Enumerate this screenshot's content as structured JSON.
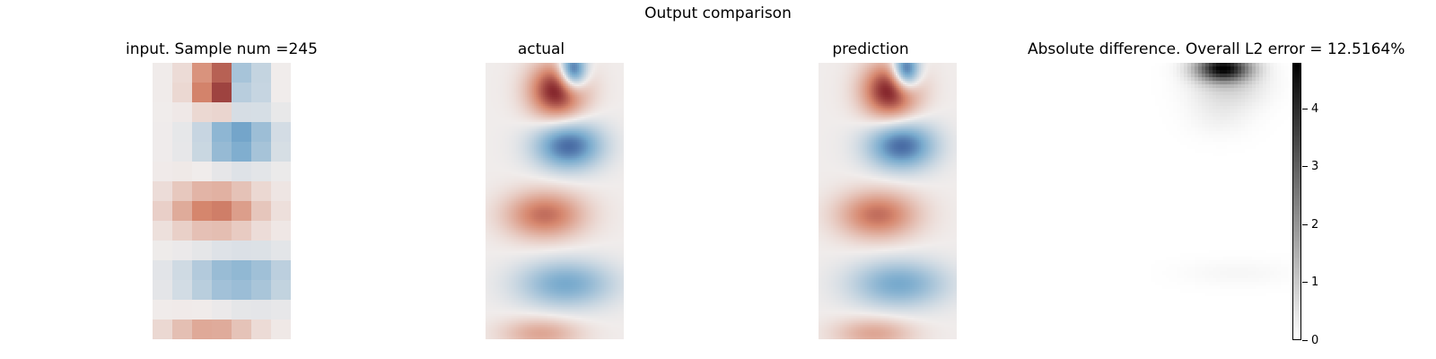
{
  "figure": {
    "suptitle": "Output comparison"
  },
  "chart_data": [
    {
      "type": "heatmap",
      "title": "input. Sample num =245",
      "colormap": "diverging red-white-blue",
      "grid": false,
      "axes": "hidden",
      "blobs": [
        {
          "sign": 1,
          "cx": 0.48,
          "cy": 0.08,
          "sx": 0.13,
          "sy": 0.06,
          "amp": 0.9
        },
        {
          "sign": -1,
          "cx": 0.68,
          "cy": 0.07,
          "sx": 0.07,
          "sy": 0.05,
          "amp": 0.9
        },
        {
          "sign": -1,
          "cx": 0.62,
          "cy": 0.28,
          "sx": 0.18,
          "sy": 0.06,
          "amp": 0.6
        },
        {
          "sign": 1,
          "cx": 0.45,
          "cy": 0.53,
          "sx": 0.23,
          "sy": 0.06,
          "amp": 0.55
        },
        {
          "sign": -1,
          "cx": 0.62,
          "cy": 0.78,
          "sx": 0.28,
          "sy": 0.06,
          "amp": 0.45
        },
        {
          "sign": 1,
          "cx": 0.42,
          "cy": 0.97,
          "sx": 0.22,
          "sy": 0.04,
          "amp": 0.35
        }
      ]
    },
    {
      "type": "heatmap",
      "title": "actual",
      "colormap": "diverging red-white-blue",
      "grid": false,
      "axes": "hidden",
      "blobs": [
        {
          "sign": 1,
          "cx": 0.52,
          "cy": 0.1,
          "sx": 0.14,
          "sy": 0.07,
          "amp": 0.95
        },
        {
          "sign": -1,
          "cx": 0.6,
          "cy": 0.3,
          "sx": 0.17,
          "sy": 0.06,
          "amp": 0.75
        },
        {
          "sign": 1,
          "cx": 0.43,
          "cy": 0.55,
          "sx": 0.2,
          "sy": 0.06,
          "amp": 0.6
        },
        {
          "sign": -1,
          "cx": 0.58,
          "cy": 0.8,
          "sx": 0.24,
          "sy": 0.06,
          "amp": 0.5
        },
        {
          "sign": 1,
          "cx": 0.4,
          "cy": 0.98,
          "sx": 0.2,
          "sy": 0.04,
          "amp": 0.35
        },
        {
          "sign": -1,
          "cx": 0.63,
          "cy": 0.03,
          "sx": 0.07,
          "sy": 0.05,
          "amp": 1.0
        }
      ]
    },
    {
      "type": "heatmap",
      "title": "prediction",
      "colormap": "diverging red-white-blue",
      "grid": false,
      "axes": "hidden",
      "blobs": [
        {
          "sign": 1,
          "cx": 0.52,
          "cy": 0.1,
          "sx": 0.14,
          "sy": 0.07,
          "amp": 0.95
        },
        {
          "sign": -1,
          "cx": 0.6,
          "cy": 0.3,
          "sx": 0.17,
          "sy": 0.06,
          "amp": 0.75
        },
        {
          "sign": 1,
          "cx": 0.43,
          "cy": 0.55,
          "sx": 0.2,
          "sy": 0.06,
          "amp": 0.6
        },
        {
          "sign": -1,
          "cx": 0.58,
          "cy": 0.8,
          "sx": 0.24,
          "sy": 0.06,
          "amp": 0.5
        },
        {
          "sign": 1,
          "cx": 0.4,
          "cy": 0.98,
          "sx": 0.2,
          "sy": 0.04,
          "amp": 0.35
        },
        {
          "sign": -1,
          "cx": 0.63,
          "cy": 0.03,
          "sx": 0.07,
          "sy": 0.05,
          "amp": 1.0
        }
      ]
    },
    {
      "type": "heatmap",
      "title": "Absolute difference. Overall L2 error = 12.5164%",
      "colormap": "greys",
      "grid": false,
      "axes": "hidden",
      "colorbar": {
        "range": [
          0,
          4.8
        ],
        "ticks": [
          0,
          1,
          2,
          3,
          4
        ],
        "tick_labels": [
          "0",
          "1",
          "2",
          "3",
          "4"
        ]
      },
      "blobs": [
        {
          "cx": 0.52,
          "cy": 0.02,
          "sx": 0.12,
          "sy": 0.03,
          "amp": 4.7
        },
        {
          "cx": 0.56,
          "cy": 0.08,
          "sx": 0.16,
          "sy": 0.05,
          "amp": 0.45
        },
        {
          "cx": 0.5,
          "cy": 0.18,
          "sx": 0.14,
          "sy": 0.05,
          "amp": 0.12
        },
        {
          "cx": 0.62,
          "cy": 0.76,
          "sx": 0.25,
          "sy": 0.03,
          "amp": 0.05
        }
      ]
    }
  ]
}
